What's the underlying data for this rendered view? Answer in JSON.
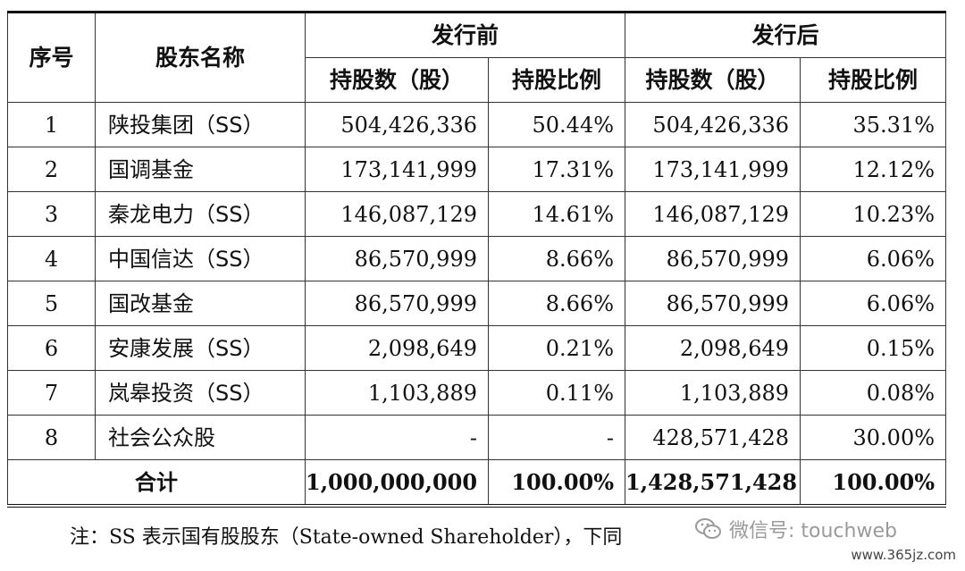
{
  "header": {
    "index": "序号",
    "name": "股东名称",
    "before": "发行前",
    "after": "发行后",
    "shares": "持股数（股）",
    "ratio": "持股比例"
  },
  "rows": [
    {
      "idx": "1",
      "name": "陕投集团（SS）",
      "before_shares": "504,426,336",
      "before_ratio": "50.44%",
      "after_shares": "504,426,336",
      "after_ratio": "35.31%"
    },
    {
      "idx": "2",
      "name": "国调基金",
      "before_shares": "173,141,999",
      "before_ratio": "17.31%",
      "after_shares": "173,141,999",
      "after_ratio": "12.12%"
    },
    {
      "idx": "3",
      "name": "秦龙电力（SS）",
      "before_shares": "146,087,129",
      "before_ratio": "14.61%",
      "after_shares": "146,087,129",
      "after_ratio": "10.23%"
    },
    {
      "idx": "4",
      "name": "中国信达（SS）",
      "before_shares": "86,570,999",
      "before_ratio": "8.66%",
      "after_shares": "86,570,999",
      "after_ratio": "6.06%"
    },
    {
      "idx": "5",
      "name": "国改基金",
      "before_shares": "86,570,999",
      "before_ratio": "8.66%",
      "after_shares": "86,570,999",
      "after_ratio": "6.06%"
    },
    {
      "idx": "6",
      "name": "安康发展（SS）",
      "before_shares": "2,098,649",
      "before_ratio": "0.21%",
      "after_shares": "2,098,649",
      "after_ratio": "0.15%"
    },
    {
      "idx": "7",
      "name": "岚皋投资（SS）",
      "before_shares": "1,103,889",
      "before_ratio": "0.11%",
      "after_shares": "1,103,889",
      "after_ratio": "0.08%"
    },
    {
      "idx": "8",
      "name": "社会公众股",
      "before_shares": "-",
      "before_ratio": "-",
      "after_shares": "428,571,428",
      "after_ratio": "30.00%"
    }
  ],
  "total": {
    "label": "合计",
    "before_shares": "1,000,000,000",
    "before_ratio": "100.00%",
    "after_shares": "1,428,571,428",
    "after_ratio": "100.00%"
  },
  "footnote": "注：SS 表示国有股股东（State-owned Shareholder），下同",
  "watermark": "微信号: touchweb",
  "site": "www.365jz.com"
}
